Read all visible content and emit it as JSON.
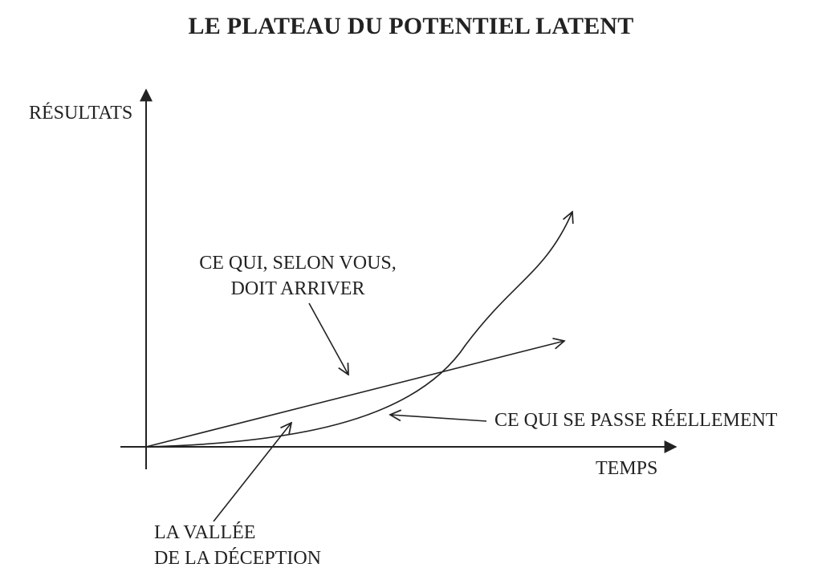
{
  "title": "LE PLATEAU DU POTENTIEL LATENT",
  "axes": {
    "y_label": "RÉSULTATS",
    "x_label": "TEMPS"
  },
  "annotations": {
    "expected": [
      "CE QUI, SELON VOUS,",
      "DOIT ARRIVER"
    ],
    "actual": "CE QUI SE PASSE RÉELLEMENT",
    "valley": [
      "LA VALLÉE",
      "DE LA DÉCEPTION"
    ]
  },
  "colors": {
    "ink": "#222222",
    "background": "#ffffff"
  }
}
